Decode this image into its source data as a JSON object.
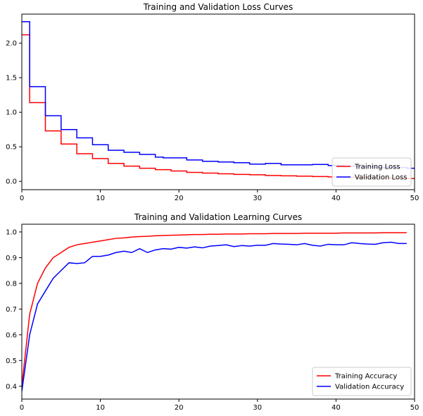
{
  "chart_data": [
    {
      "type": "line",
      "title": "Training and Validation Loss Curves",
      "xlabel": "",
      "ylabel": "",
      "xlim": [
        0,
        50
      ],
      "ylim": [
        -0.12,
        2.42
      ],
      "xticks": [
        0,
        10,
        20,
        30,
        40,
        50
      ],
      "yticks": [
        0.0,
        0.5,
        1.0,
        1.5,
        2.0
      ],
      "xtick_labels": [
        "0",
        "10",
        "20",
        "30",
        "40",
        "50"
      ],
      "ytick_labels": [
        "0.0",
        "0.5",
        "1.0",
        "1.5",
        "2.0"
      ],
      "grid": false,
      "legend_position": "lower-right",
      "step": true,
      "series": [
        {
          "name": "Training Loss",
          "color": "#ff0000",
          "x": [
            0,
            1,
            2,
            3,
            4,
            5,
            6,
            7,
            8,
            9,
            10,
            11,
            12,
            13,
            14,
            15,
            16,
            17,
            18,
            19,
            20,
            21,
            22,
            23,
            24,
            25,
            26,
            27,
            28,
            29,
            30,
            31,
            32,
            33,
            34,
            35,
            36,
            37,
            38,
            39,
            40,
            41,
            42,
            43,
            44,
            45,
            46,
            47,
            48,
            49,
            50
          ],
          "y": [
            2.12,
            1.14,
            1.14,
            0.73,
            0.73,
            0.54,
            0.54,
            0.4,
            0.4,
            0.33,
            0.33,
            0.26,
            0.26,
            0.22,
            0.22,
            0.19,
            0.19,
            0.17,
            0.17,
            0.15,
            0.15,
            0.13,
            0.13,
            0.12,
            0.12,
            0.11,
            0.11,
            0.1,
            0.1,
            0.095,
            0.095,
            0.085,
            0.085,
            0.08,
            0.08,
            0.075,
            0.075,
            0.07,
            0.07,
            0.065,
            0.065,
            0.06,
            0.06,
            0.055,
            0.055,
            0.05,
            0.05,
            0.045,
            0.045,
            0.04,
            0.04
          ]
        },
        {
          "name": "Validation Loss",
          "color": "#0000ff",
          "x": [
            0,
            1,
            2,
            3,
            4,
            5,
            6,
            7,
            8,
            9,
            10,
            11,
            12,
            13,
            14,
            15,
            16,
            17,
            18,
            19,
            20,
            21,
            22,
            23,
            24,
            25,
            26,
            27,
            28,
            29,
            30,
            31,
            32,
            33,
            34,
            35,
            36,
            37,
            38,
            39,
            40,
            41,
            42,
            43,
            44,
            45,
            46,
            47,
            48,
            49,
            50
          ],
          "y": [
            2.31,
            1.37,
            1.37,
            0.95,
            0.95,
            0.75,
            0.75,
            0.63,
            0.63,
            0.53,
            0.53,
            0.45,
            0.45,
            0.42,
            0.42,
            0.39,
            0.39,
            0.35,
            0.34,
            0.34,
            0.34,
            0.31,
            0.31,
            0.29,
            0.29,
            0.28,
            0.28,
            0.27,
            0.27,
            0.25,
            0.25,
            0.26,
            0.26,
            0.24,
            0.24,
            0.24,
            0.24,
            0.245,
            0.245,
            0.23,
            0.23,
            0.22,
            0.22,
            0.21,
            0.21,
            0.2,
            0.2,
            0.2,
            0.2,
            0.19,
            0.19
          ]
        }
      ]
    },
    {
      "type": "line",
      "title": "Training and Validation Learning Curves",
      "xlabel": "",
      "ylabel": "",
      "xlim": [
        0,
        50
      ],
      "ylim": [
        0.35,
        1.03
      ],
      "xticks": [
        0,
        10,
        20,
        30,
        40,
        50
      ],
      "yticks": [
        0.4,
        0.5,
        0.6,
        0.7,
        0.8,
        0.9,
        1.0
      ],
      "xtick_labels": [
        "0",
        "10",
        "20",
        "30",
        "40",
        "50"
      ],
      "ytick_labels": [
        "0.4",
        "0.5",
        "0.6",
        "0.7",
        "0.8",
        "0.9",
        "1.0"
      ],
      "grid": false,
      "legend_position": "lower-right",
      "step": false,
      "series": [
        {
          "name": "Training Accuracy",
          "color": "#ff0000",
          "x": [
            0,
            1,
            2,
            3,
            4,
            5,
            6,
            7,
            8,
            9,
            10,
            11,
            12,
            13,
            14,
            15,
            16,
            17,
            18,
            19,
            20,
            21,
            22,
            23,
            24,
            25,
            26,
            27,
            28,
            29,
            30,
            31,
            32,
            33,
            34,
            35,
            36,
            37,
            38,
            39,
            40,
            41,
            42,
            43,
            44,
            45,
            46,
            47,
            48,
            49
          ],
          "y": [
            0.4,
            0.68,
            0.8,
            0.86,
            0.9,
            0.92,
            0.94,
            0.95,
            0.955,
            0.96,
            0.965,
            0.97,
            0.975,
            0.977,
            0.98,
            0.982,
            0.983,
            0.985,
            0.986,
            0.987,
            0.988,
            0.989,
            0.99,
            0.99,
            0.991,
            0.991,
            0.992,
            0.992,
            0.992,
            0.993,
            0.993,
            0.993,
            0.994,
            0.994,
            0.994,
            0.994,
            0.995,
            0.995,
            0.995,
            0.995,
            0.995,
            0.996,
            0.996,
            0.996,
            0.996,
            0.996,
            0.997,
            0.997,
            0.997,
            0.997
          ]
        },
        {
          "name": "Validation Accuracy",
          "color": "#0000ff",
          "x": [
            0,
            1,
            2,
            3,
            4,
            5,
            6,
            7,
            8,
            9,
            10,
            11,
            12,
            13,
            14,
            15,
            16,
            17,
            18,
            19,
            20,
            21,
            22,
            23,
            24,
            25,
            26,
            27,
            28,
            29,
            30,
            31,
            32,
            33,
            34,
            35,
            36,
            37,
            38,
            39,
            40,
            41,
            42,
            43,
            44,
            45,
            46,
            47,
            48,
            49
          ],
          "y": [
            0.38,
            0.6,
            0.72,
            0.77,
            0.82,
            0.85,
            0.88,
            0.877,
            0.88,
            0.905,
            0.905,
            0.91,
            0.92,
            0.925,
            0.92,
            0.935,
            0.92,
            0.93,
            0.935,
            0.933,
            0.94,
            0.937,
            0.942,
            0.938,
            0.945,
            0.947,
            0.95,
            0.943,
            0.947,
            0.945,
            0.948,
            0.948,
            0.955,
            0.953,
            0.952,
            0.95,
            0.955,
            0.948,
            0.945,
            0.952,
            0.95,
            0.95,
            0.958,
            0.955,
            0.953,
            0.952,
            0.958,
            0.96,
            0.955,
            0.955
          ]
        }
      ]
    }
  ]
}
